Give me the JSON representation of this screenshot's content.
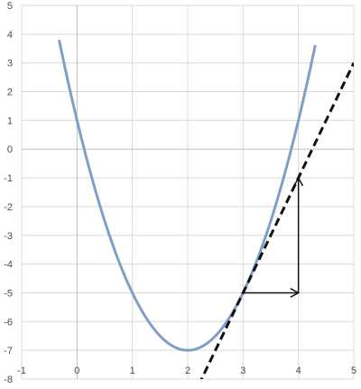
{
  "chart_data": {
    "type": "line",
    "title": "",
    "xlabel": "",
    "ylabel": "",
    "xlim": [
      -1,
      5
    ],
    "ylim": [
      -8,
      5
    ],
    "x_ticks": [
      -1,
      0,
      1,
      2,
      3,
      4,
      5
    ],
    "y_ticks": [
      5,
      4,
      3,
      2,
      1,
      0,
      -1,
      -2,
      -3,
      -4,
      -5,
      -6,
      -7,
      -8
    ],
    "x_tick_labels": [
      "-1",
      "0",
      "1",
      "2",
      "3",
      "4",
      "5"
    ],
    "y_tick_labels": [
      "5",
      "4",
      "3",
      "2",
      "1",
      "0",
      "-1",
      "-2",
      "-3",
      "-4",
      "-5",
      "-6",
      "-7",
      "-8"
    ],
    "grid": "vertical and horizontal",
    "legend": "none",
    "series": [
      {
        "kind": "curve",
        "color": "#7f9fc6",
        "style": "solid",
        "function": "y = 2x^2 - 8x + 1",
        "x": [
          -0.32,
          0,
          0.5,
          1,
          1.5,
          2,
          2.5,
          3,
          3.5,
          4,
          4.3
        ],
        "y": [
          3.76,
          1,
          -2.5,
          -5,
          -6.5,
          -7,
          -6.5,
          -5,
          -2.5,
          1,
          3.58
        ]
      },
      {
        "kind": "tangent-line",
        "color": "#111111",
        "style": "dashed",
        "function": "y = 4x - 17",
        "x": [
          2.0,
          5.0
        ],
        "y": [
          -9.0,
          3.0
        ]
      },
      {
        "kind": "run-arrow",
        "color": "#111111",
        "style": "solid",
        "x": [
          3,
          4
        ],
        "y": [
          -5,
          -5
        ]
      },
      {
        "kind": "rise-arrow",
        "color": "#111111",
        "style": "solid",
        "x": [
          4,
          4
        ],
        "y": [
          -5,
          -1
        ]
      }
    ]
  }
}
